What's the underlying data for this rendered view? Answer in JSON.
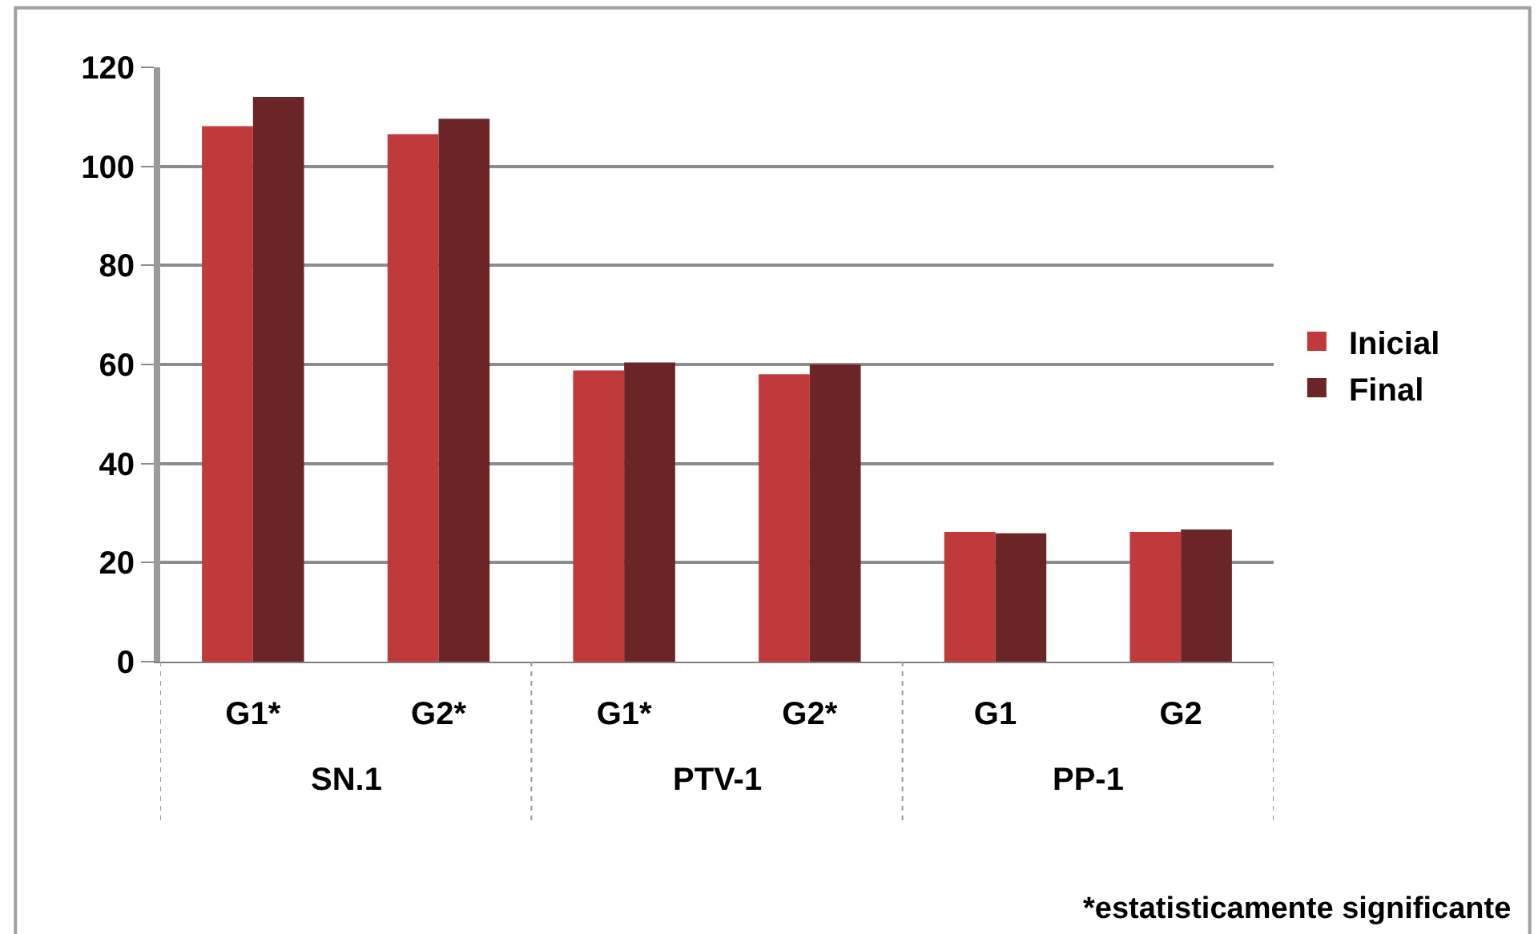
{
  "chart_data": {
    "type": "bar",
    "categories": [
      "G1*",
      "G2*",
      "G1*",
      "G2*",
      "G1",
      "G2"
    ],
    "series": [
      {
        "name": "Inicial",
        "color": "#c0393b",
        "values": [
          108.1,
          106.5,
          58.8,
          58,
          26.2,
          26.2
        ]
      },
      {
        "name": "Final",
        "color": "#6b2527",
        "values": [
          114,
          109.6,
          60.4,
          60,
          25.9,
          26.7
        ]
      }
    ],
    "ylim": [
      0,
      120
    ],
    "yticks": [
      0,
      20,
      40,
      60,
      80,
      100,
      120
    ],
    "grid": "y",
    "legend": "right",
    "annotations": [
      "SN.1",
      "PTV-1",
      "PP-1",
      "*estatisticamente significante"
    ]
  }
}
